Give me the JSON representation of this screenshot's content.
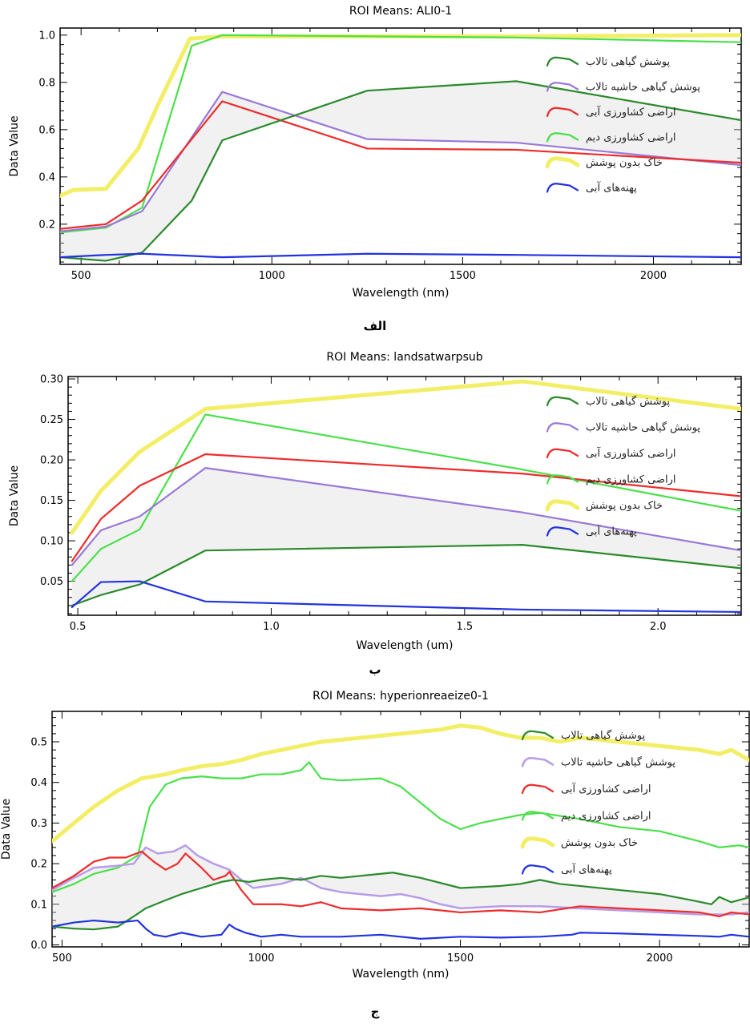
{
  "captions": [
    "الف",
    "ب",
    "ج"
  ],
  "chart_data": [
    {
      "type": "line",
      "title": "ROI Means: ALI0-1",
      "xlabel": "Wavelength (nm)",
      "ylabel": "Data Value",
      "xlim": [
        445,
        2230
      ],
      "ylim": [
        0.03,
        1.03
      ],
      "xticks": [
        500,
        1000,
        1500,
        2000
      ],
      "yticks": [
        0.2,
        0.4,
        0.6,
        0.8,
        1.0
      ],
      "ytick_labels": [
        "0.2",
        "0.4",
        "0.6",
        "0.8",
        "1.0"
      ],
      "legend_position": "right",
      "series": [
        {
          "name": "پوشش گیاهی تالاب",
          "color": "#2a8a2a",
          "width": 2.2,
          "x": [
            445,
            565,
            660,
            790,
            870,
            1250,
            1640,
            2230
          ],
          "y": [
            0.06,
            0.045,
            0.08,
            0.3,
            0.555,
            0.765,
            0.805,
            0.64
          ]
        },
        {
          "name": "پوشش گیاهی حاشیه تالاب",
          "color": "#9a78d8",
          "width": 2.2,
          "x": [
            445,
            565,
            660,
            870,
            1250,
            1640,
            2230
          ],
          "y": [
            0.17,
            0.19,
            0.255,
            0.76,
            0.56,
            0.545,
            0.45
          ]
        },
        {
          "name": "اراضی کشاورزی آبی",
          "color": "#ee2b2b",
          "width": 2.2,
          "x": [
            445,
            565,
            660,
            870,
            1250,
            1640,
            2230
          ],
          "y": [
            0.18,
            0.2,
            0.3,
            0.72,
            0.52,
            0.515,
            0.46
          ]
        },
        {
          "name": "اراضی کشاورزی دیم",
          "color": "#4ae04a",
          "width": 2.2,
          "x": [
            445,
            565,
            660,
            790,
            870,
            1250,
            1640,
            2230
          ],
          "y": [
            0.165,
            0.185,
            0.27,
            0.955,
            1.0,
            0.995,
            0.99,
            0.97
          ]
        },
        {
          "name": "خاک بدون پوشش",
          "color": "#f2ee66",
          "width": 5,
          "x": [
            445,
            480,
            565,
            650,
            700,
            785,
            870,
            1250,
            1640,
            2230
          ],
          "y": [
            0.32,
            0.345,
            0.35,
            0.52,
            0.7,
            0.985,
            0.995,
            0.995,
            0.995,
            1.0
          ]
        },
        {
          "name": "پهنه‌های آبی",
          "color": "#2233dd",
          "width": 2.2,
          "x": [
            445,
            565,
            660,
            870,
            1250,
            1640,
            2230
          ],
          "y": [
            0.06,
            0.07,
            0.075,
            0.06,
            0.075,
            0.07,
            0.06
          ]
        }
      ]
    },
    {
      "type": "line",
      "title": "ROI Means: landsatwarpsub",
      "xlabel": "Wavelength (um)",
      "ylabel": "Data Value",
      "xlim": [
        0.475,
        2.215
      ],
      "ylim": [
        0.008,
        0.303
      ],
      "xticks": [
        0.5,
        1.0,
        1.5,
        2.0
      ],
      "xtick_labels": [
        "0.5",
        "1.0",
        "1.5",
        "2.0"
      ],
      "yticks": [
        0.05,
        0.1,
        0.15,
        0.2,
        0.25,
        0.3
      ],
      "ytick_labels": [
        "0.05",
        "0.10",
        "0.15",
        "0.20",
        "0.25",
        "0.30"
      ],
      "legend_position": "right",
      "series": [
        {
          "name": "پوشش گیاهی تالاب",
          "color": "#2a8a2a",
          "width": 2.2,
          "x": [
            0.485,
            0.56,
            0.66,
            0.83,
            1.65,
            2.215
          ],
          "y": [
            0.02,
            0.033,
            0.046,
            0.088,
            0.095,
            0.066
          ]
        },
        {
          "name": "پوشش گیاهی حاشیه تالاب",
          "color": "#9a78d8",
          "width": 2.2,
          "x": [
            0.485,
            0.56,
            0.66,
            0.83,
            1.65,
            2.215
          ],
          "y": [
            0.07,
            0.113,
            0.13,
            0.19,
            0.135,
            0.088
          ]
        },
        {
          "name": "اراضی کشاورزی آبی",
          "color": "#ee2b2b",
          "width": 2.2,
          "x": [
            0.485,
            0.56,
            0.66,
            0.83,
            1.65,
            2.215
          ],
          "y": [
            0.075,
            0.127,
            0.168,
            0.207,
            0.183,
            0.155
          ]
        },
        {
          "name": "اراضی کشاورزی دیم",
          "color": "#4ae04a",
          "width": 2.2,
          "x": [
            0.485,
            0.56,
            0.66,
            0.83,
            1.65,
            2.215
          ],
          "y": [
            0.05,
            0.09,
            0.114,
            0.256,
            0.188,
            0.137
          ]
        },
        {
          "name": "خاک بدون پوشش",
          "color": "#f2ee66",
          "width": 5,
          "x": [
            0.485,
            0.56,
            0.66,
            0.83,
            1.65,
            2.215
          ],
          "y": [
            0.11,
            0.162,
            0.21,
            0.263,
            0.297,
            0.263
          ]
        },
        {
          "name": "پهنه‌های آبی",
          "color": "#2233dd",
          "width": 2.2,
          "x": [
            0.485,
            0.56,
            0.66,
            0.83,
            1.65,
            2.215
          ],
          "y": [
            0.018,
            0.049,
            0.05,
            0.025,
            0.015,
            0.012
          ]
        }
      ]
    },
    {
      "type": "line",
      "title": "ROI Means: hyperionreaeize0-1",
      "xlabel": "Wavelength (nm)",
      "ylabel": "Data Value",
      "xlim": [
        475,
        2225
      ],
      "ylim": [
        -0.005,
        0.575
      ],
      "xticks": [
        500,
        1000,
        1500,
        2000
      ],
      "yticks": [
        0.0,
        0.1,
        0.2,
        0.3,
        0.4,
        0.5
      ],
      "ytick_labels": [
        "0.0",
        "0.1",
        "0.2",
        "0.3",
        "0.4",
        "0.5"
      ],
      "legend_position": "right",
      "series": [
        {
          "name": "پوشش گیاهی تالاب",
          "color": "#2a8a2a",
          "width": 2.2,
          "x": [
            475,
            530,
            580,
            640,
            680,
            710,
            760,
            800,
            850,
            900,
            930,
            970,
            1000,
            1050,
            1100,
            1150,
            1200,
            1300,
            1330,
            1400,
            1500,
            1600,
            1650,
            1700,
            1750,
            1800,
            1900,
            2000,
            2080,
            2130,
            2150,
            2180,
            2225
          ],
          "y": [
            0.045,
            0.04,
            0.038,
            0.045,
            0.07,
            0.09,
            0.11,
            0.125,
            0.14,
            0.155,
            0.16,
            0.155,
            0.16,
            0.165,
            0.16,
            0.17,
            0.165,
            0.175,
            0.178,
            0.165,
            0.14,
            0.145,
            0.15,
            0.16,
            0.15,
            0.145,
            0.135,
            0.125,
            0.11,
            0.1,
            0.118,
            0.105,
            0.117
          ]
        },
        {
          "name": "پوشش گیاهی حاشیه تالاب",
          "color": "#b89ce8",
          "width": 2.5,
          "x": [
            475,
            530,
            580,
            640,
            680,
            710,
            740,
            780,
            810,
            840,
            880,
            920,
            950,
            980,
            1050,
            1100,
            1150,
            1200,
            1250,
            1300,
            1350,
            1400,
            1450,
            1500,
            1600,
            1700,
            1800,
            1900,
            2000,
            2100,
            2180,
            2225
          ],
          "y": [
            0.135,
            0.165,
            0.19,
            0.195,
            0.2,
            0.24,
            0.225,
            0.23,
            0.245,
            0.22,
            0.2,
            0.185,
            0.16,
            0.14,
            0.15,
            0.165,
            0.14,
            0.13,
            0.125,
            0.12,
            0.125,
            0.115,
            0.1,
            0.09,
            0.095,
            0.095,
            0.09,
            0.085,
            0.08,
            0.075,
            0.075,
            0.08
          ]
        },
        {
          "name": "اراضی کشاورزی آبی",
          "color": "#ee2b2b",
          "width": 2.2,
          "x": [
            475,
            530,
            580,
            620,
            660,
            700,
            730,
            760,
            790,
            810,
            850,
            880,
            910,
            920,
            950,
            980,
            1050,
            1100,
            1150,
            1200,
            1300,
            1400,
            1500,
            1600,
            1700,
            1800,
            1900,
            2000,
            2100,
            2150,
            2180,
            2225
          ],
          "y": [
            0.14,
            0.17,
            0.205,
            0.215,
            0.215,
            0.23,
            0.205,
            0.185,
            0.2,
            0.225,
            0.19,
            0.16,
            0.17,
            0.18,
            0.135,
            0.1,
            0.1,
            0.095,
            0.105,
            0.09,
            0.085,
            0.09,
            0.08,
            0.085,
            0.08,
            0.095,
            0.09,
            0.085,
            0.08,
            0.07,
            0.08,
            0.075
          ]
        },
        {
          "name": "اراضی کشاورزی دیم",
          "color": "#4ae04a",
          "width": 2.2,
          "x": [
            475,
            530,
            580,
            640,
            690,
            720,
            760,
            800,
            850,
            900,
            950,
            1000,
            1050,
            1100,
            1120,
            1150,
            1200,
            1300,
            1350,
            1400,
            1450,
            1500,
            1550,
            1600,
            1650,
            1700,
            1800,
            1900,
            2000,
            2100,
            2150,
            2200,
            2225
          ],
          "y": [
            0.13,
            0.15,
            0.175,
            0.19,
            0.22,
            0.34,
            0.395,
            0.41,
            0.415,
            0.41,
            0.41,
            0.42,
            0.42,
            0.43,
            0.45,
            0.41,
            0.405,
            0.41,
            0.39,
            0.35,
            0.31,
            0.285,
            0.3,
            0.31,
            0.32,
            0.325,
            0.31,
            0.29,
            0.28,
            0.255,
            0.24,
            0.245,
            0.24
          ]
        },
        {
          "name": "خاک بدون پوشش",
          "color": "#f2ee66",
          "width": 5,
          "x": [
            475,
            530,
            580,
            640,
            700,
            760,
            800,
            850,
            900,
            950,
            1000,
            1050,
            1100,
            1150,
            1200,
            1250,
            1300,
            1350,
            1400,
            1450,
            1500,
            1550,
            1600,
            1650,
            1700,
            1750,
            1800,
            1900,
            2000,
            2100,
            2150,
            2180,
            2225
          ],
          "y": [
            0.255,
            0.3,
            0.34,
            0.38,
            0.41,
            0.42,
            0.43,
            0.44,
            0.445,
            0.455,
            0.47,
            0.48,
            0.49,
            0.5,
            0.505,
            0.51,
            0.515,
            0.52,
            0.525,
            0.53,
            0.54,
            0.535,
            0.52,
            0.51,
            0.51,
            0.5,
            0.51,
            0.5,
            0.49,
            0.48,
            0.47,
            0.48,
            0.455
          ]
        },
        {
          "name": "پهنه‌های آبی",
          "color": "#2233dd",
          "width": 2.2,
          "x": [
            475,
            530,
            580,
            640,
            690,
            710,
            730,
            760,
            800,
            850,
            900,
            920,
            935,
            960,
            1000,
            1050,
            1100,
            1200,
            1300,
            1400,
            1500,
            1600,
            1700,
            1780,
            1800,
            1900,
            2000,
            2100,
            2150,
            2180,
            2225
          ],
          "y": [
            0.045,
            0.055,
            0.06,
            0.055,
            0.06,
            0.04,
            0.025,
            0.02,
            0.03,
            0.02,
            0.025,
            0.05,
            0.04,
            0.03,
            0.02,
            0.025,
            0.02,
            0.02,
            0.025,
            0.015,
            0.02,
            0.018,
            0.02,
            0.025,
            0.03,
            0.028,
            0.025,
            0.022,
            0.02,
            0.025,
            0.02
          ]
        }
      ]
    }
  ]
}
